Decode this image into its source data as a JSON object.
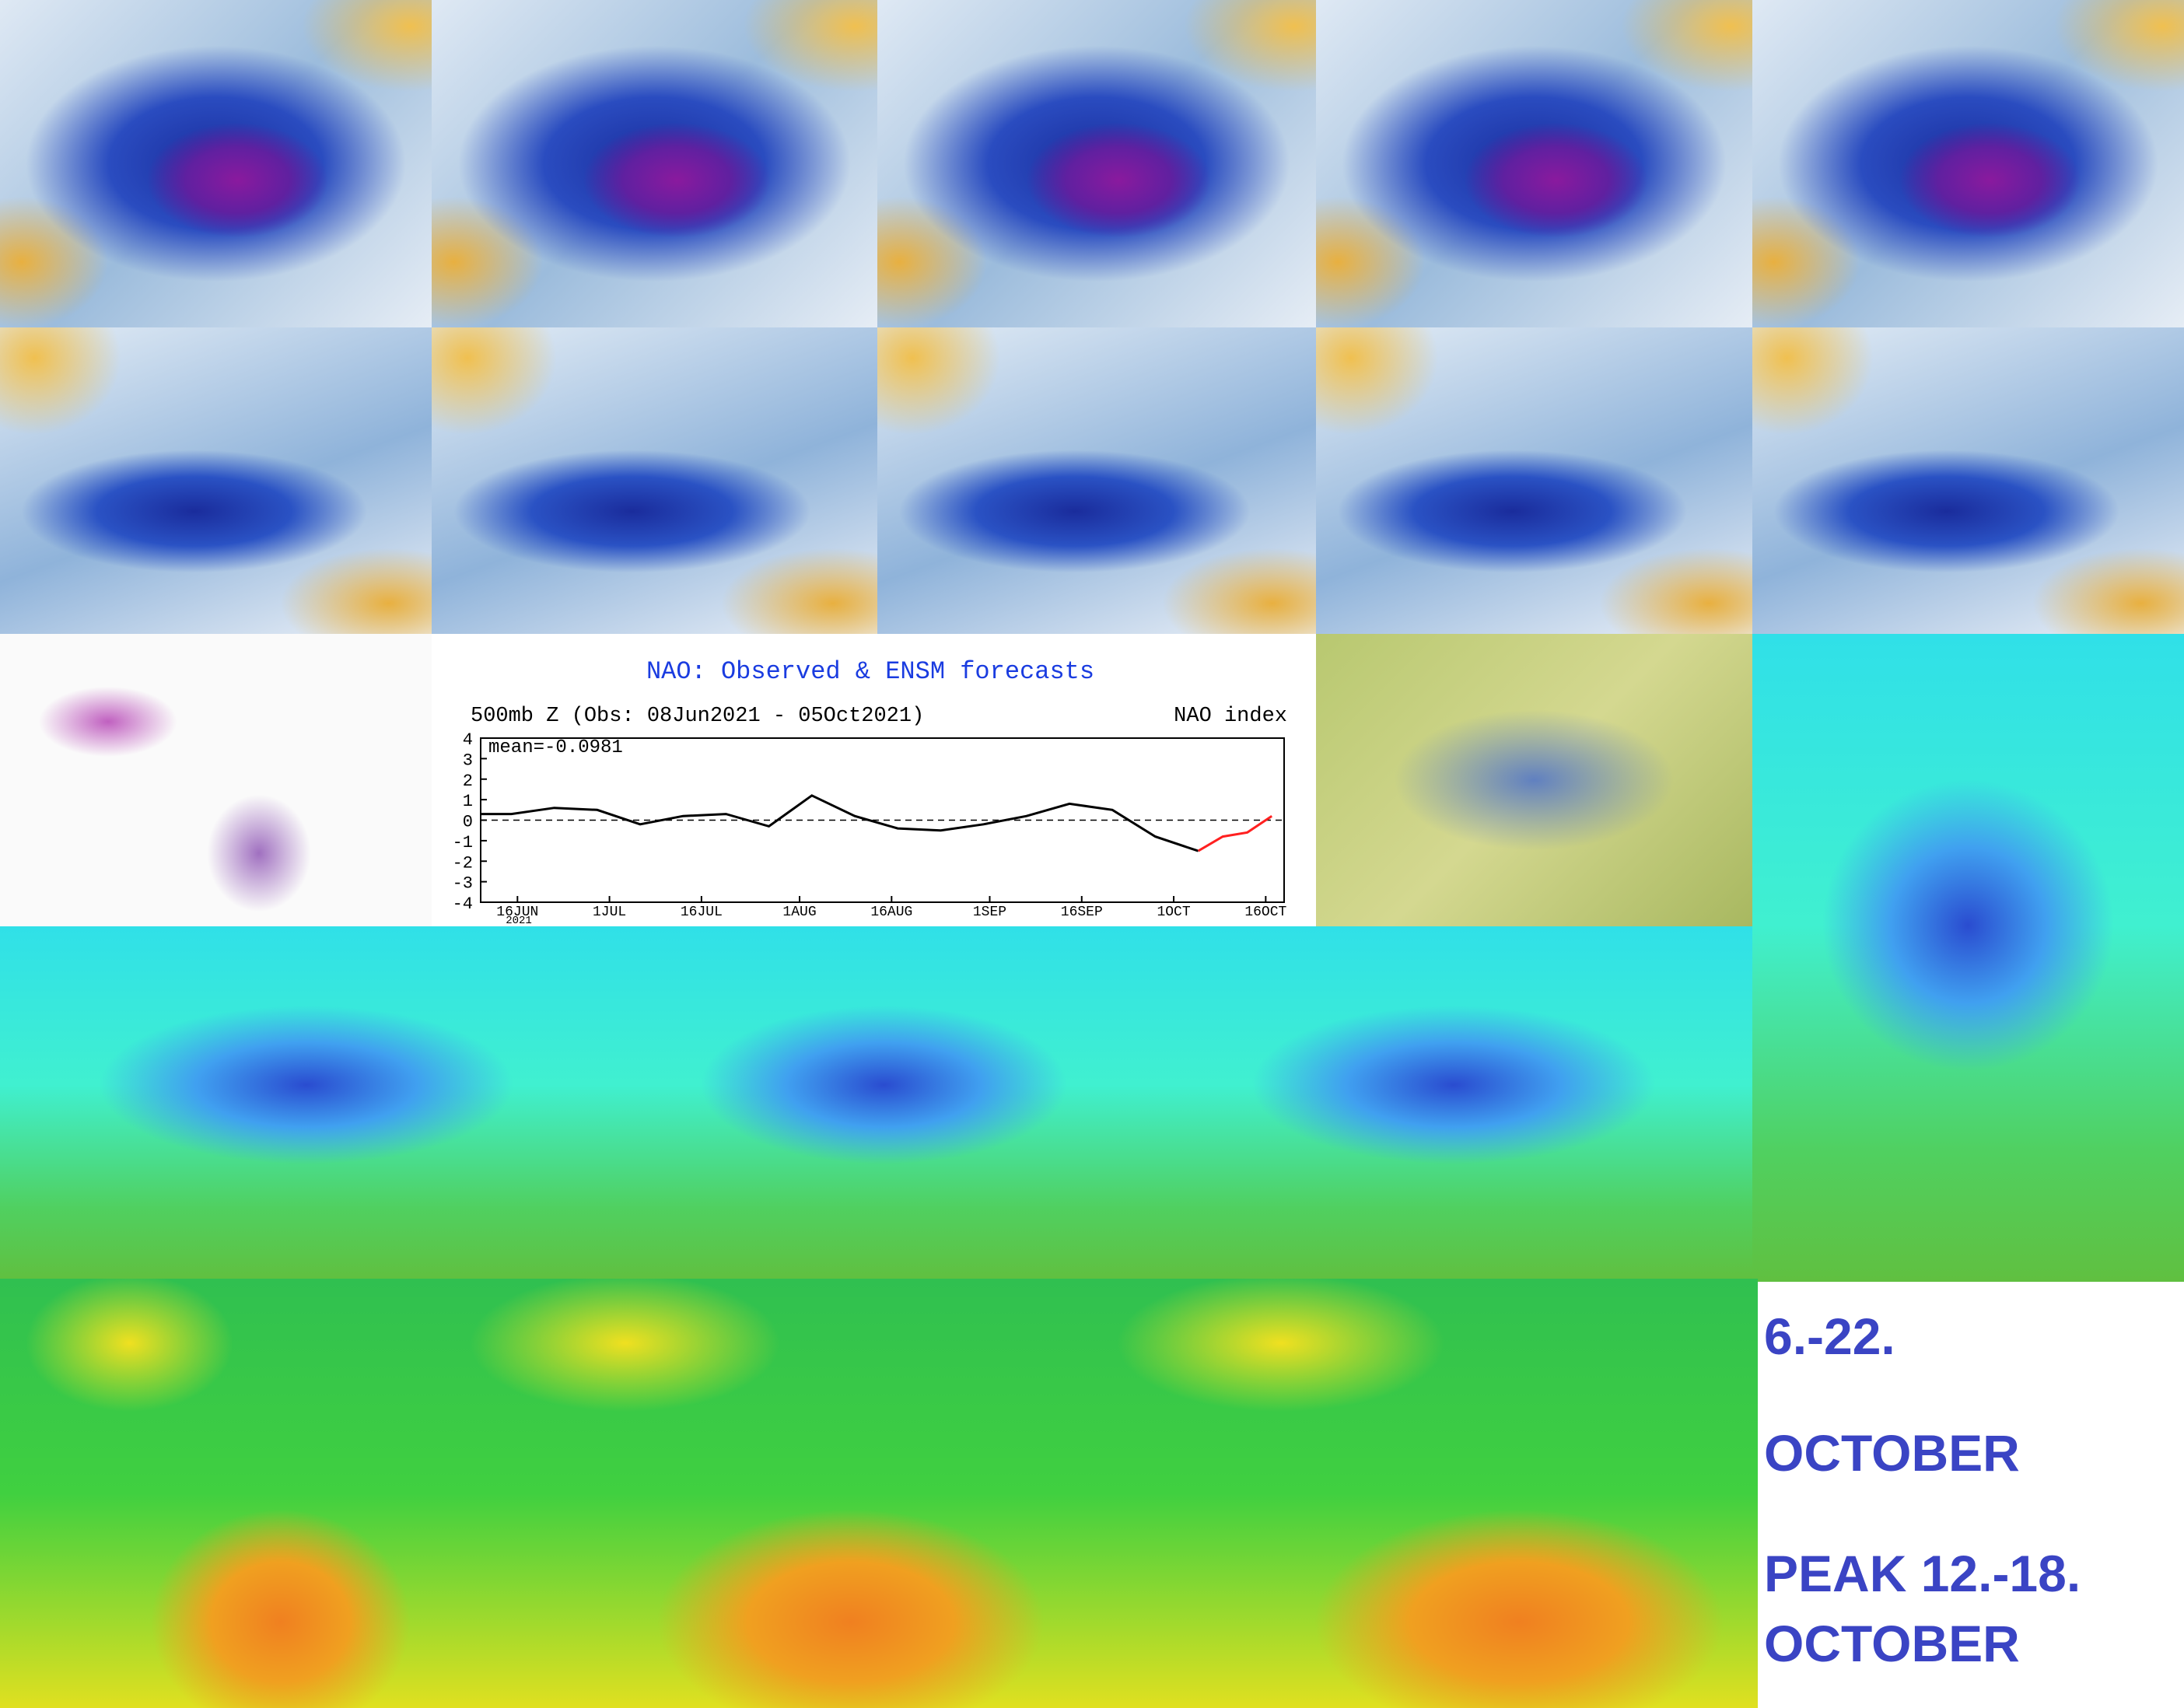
{
  "chart_data": {
    "type": "line",
    "title": "NAO: Observed & ENSM forecasts",
    "subtitle": "500mb Z (Obs: 08Jun2021 - 05Oct2021)",
    "y_label": "NAO index",
    "annotation": "mean=-0.0981",
    "year_label": "2021",
    "x": [
      "2021-06-10",
      "2021-06-15",
      "2021-06-22",
      "2021-06-29",
      "2021-07-06",
      "2021-07-13",
      "2021-07-20",
      "2021-07-27",
      "2021-08-03",
      "2021-08-10",
      "2021-08-17",
      "2021-08-24",
      "2021-08-31",
      "2021-09-07",
      "2021-09-14",
      "2021-09-21",
      "2021-09-28",
      "2021-10-05",
      "2021-10-09",
      "2021-10-13",
      "2021-10-17"
    ],
    "series": [
      {
        "name": "Observed",
        "color": "#000000",
        "values": [
          0.3,
          0.3,
          0.6,
          0.5,
          -0.2,
          0.2,
          0.3,
          -0.3,
          1.2,
          0.2,
          -0.4,
          -0.5,
          -0.2,
          0.2,
          0.8,
          0.5,
          -0.8,
          -1.5,
          null,
          null,
          null
        ]
      },
      {
        "name": "ENSM forecasts",
        "color": "#ff2020",
        "values": [
          null,
          null,
          null,
          null,
          null,
          null,
          null,
          null,
          null,
          null,
          null,
          null,
          null,
          null,
          null,
          null,
          null,
          -1.5,
          -0.8,
          -0.6,
          0.2
        ]
      }
    ],
    "xlim": [
      "2021-06-10",
      "2021-10-19"
    ],
    "xticks": [
      {
        "value": "2021-06-16",
        "label": "16JUN"
      },
      {
        "value": "2021-07-01",
        "label": "1JUL"
      },
      {
        "value": "2021-07-16",
        "label": "16JUL"
      },
      {
        "value": "2021-08-01",
        "label": "1AUG"
      },
      {
        "value": "2021-08-16",
        "label": "16AUG"
      },
      {
        "value": "2021-09-01",
        "label": "1SEP"
      },
      {
        "value": "2021-09-16",
        "label": "16SEP"
      },
      {
        "value": "2021-10-01",
        "label": "1OCT"
      },
      {
        "value": "2021-10-16",
        "label": "16OCT"
      }
    ],
    "ylim": [
      -4,
      4
    ],
    "yticks": [
      -4,
      -3,
      -2,
      -1,
      0,
      1,
      2,
      3,
      4
    ]
  },
  "text_panel": {
    "lines": [
      "6.-22.",
      "OCTOBER",
      "PEAK 12.-18.",
      "OCTOBER"
    ]
  }
}
